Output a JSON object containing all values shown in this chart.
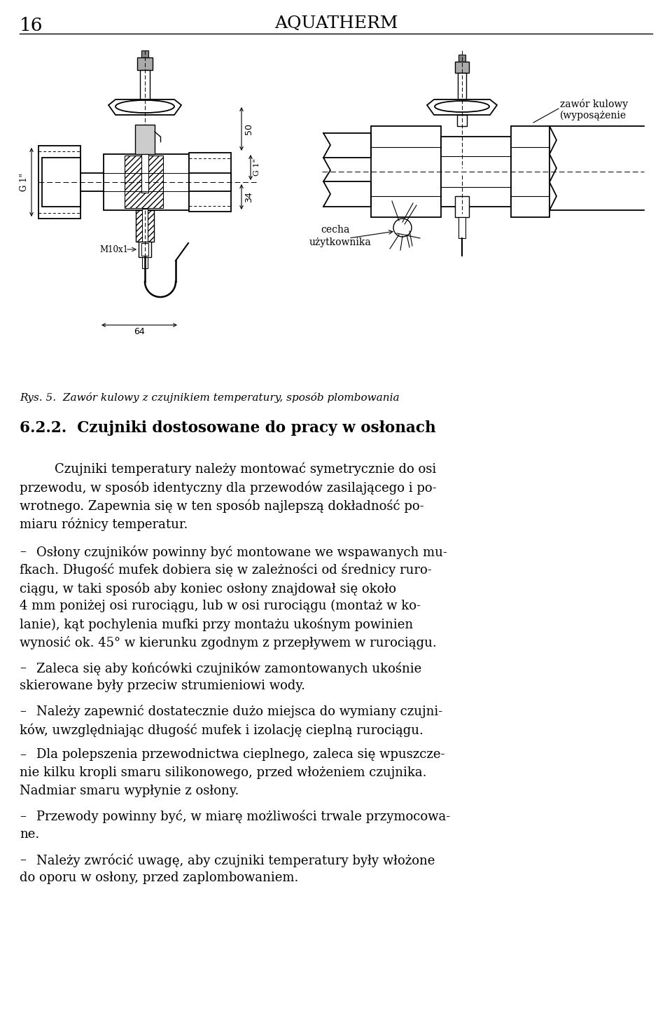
{
  "page_number": "16",
  "header_title": "AQUATHERM",
  "figure_caption": "Rys. 5.  Zawór kulowy z czujnikiem temperatury, sposób plombowania",
  "section_heading": "6.2.2.  Czujniki dostosowane do pracy w osłonach",
  "bg_color": "#ffffff",
  "text_color": "#000000",
  "fig_width": 9.6,
  "fig_height": 14.46,
  "dpi": 100,
  "p1_lines": [
    "Czujniki temperatury należy montować symetrycznie do osi",
    "przewodu, w sposób identyczny dla przewodów zasilającego i po-",
    "wrotnego. Zapewnia się w ten sposób najlepszą dokładność po-",
    "miaru różnicy temperatur."
  ],
  "bullets": [
    [
      "Osłony czujników powinny być montowane we wspawanych mu-",
      "fkach. Długość mufek dobiera się w zależności od średnicy ruro-",
      "ciągu, w taki sposób aby koniec osłony znajdował się około",
      "4 mm poniżej osi rurociągu, lub w osi rurociągu (montaż w ko-",
      "lanie), kąt pochylenia mufki przy montażu ukośnym powinien",
      "wynosić ok. 45° w kierunku zgodnym z przepływem w rurociągu."
    ],
    [
      "Zaleca się aby końcówki czujników zamontowanych ukośnie",
      "skierowane były przeciw strumieniowi wody."
    ],
    [
      "Należy zapewnić dostatecznie dużo miejsca do wymiany czujni-",
      "ków, uwzględniając długość mufek i izolację cieplną rurociągu."
    ],
    [
      "Dla polepszenia przewodnictwa cieplnego, zaleca się wpuszcze-",
      "nie kilku kropli smaru silikonowego, przed włożeniem czujnika.",
      "Nadmiar smaru wypłynie z osłony."
    ],
    [
      "Przewody powinny być, w miarę możliwości trwale przymocowa-",
      "ne."
    ],
    [
      "Należy zwrócić uwagę, aby czujniki temperatury były włożone",
      "do oporu w osłony, przed zaplombowaniem."
    ]
  ]
}
